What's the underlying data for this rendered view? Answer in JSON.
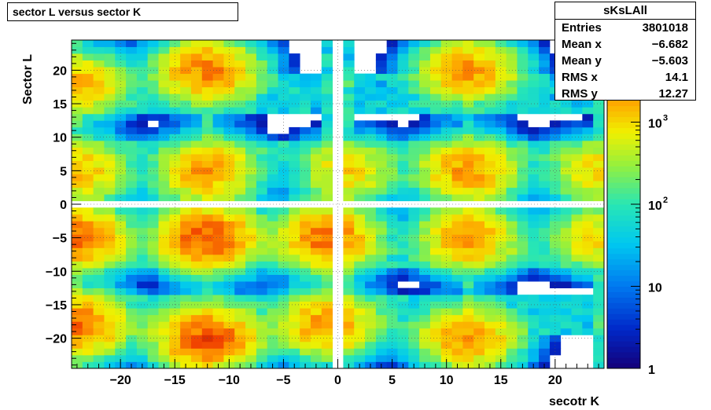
{
  "title": "sector L versus sector K",
  "stats": {
    "name": "sKsLAll",
    "rows": [
      {
        "label": "Entries",
        "value": "3801018"
      },
      {
        "label": "Mean x",
        "value": "−6.682"
      },
      {
        "label": "Mean y",
        "value": "−5.603"
      },
      {
        "label": "RMS x",
        "value": "14.1"
      },
      {
        "label": "RMS y",
        "value": "12.27"
      }
    ]
  },
  "chart_data": {
    "type": "heatmap",
    "title": "sector L versus sector K",
    "xlabel": "secotr K",
    "ylabel": "Sector L",
    "xlim": [
      -24.5,
      24.5
    ],
    "ylim": [
      -24.5,
      24.5
    ],
    "x_ticks": [
      "−20",
      "−15",
      "−10",
      "−5",
      "0",
      "5",
      "10",
      "15",
      "20"
    ],
    "y_ticks": [
      "−20",
      "−15",
      "−10",
      "−5",
      "0",
      "5",
      "10",
      "15",
      "20"
    ],
    "z_scale": "log",
    "zlim": [
      1,
      10000
    ],
    "z_ticks": [
      {
        "label": "1",
        "value": 1
      },
      {
        "label": "10",
        "value": 10
      },
      {
        "label": "10",
        "sup": "2",
        "value": 100
      },
      {
        "label": "10",
        "sup": "3",
        "value": 1000
      }
    ],
    "empty_bins": "x = 0 and y = 0 rows/columns are empty",
    "hotspots": [
      {
        "k": -12,
        "l": -5,
        "counts": 4000
      },
      {
        "k": -12,
        "l": -20,
        "counts": 4000
      },
      {
        "k": -12,
        "l": 20,
        "counts": 2500
      },
      {
        "k": -12,
        "l": 5,
        "counts": 2000
      },
      {
        "k": 12,
        "l": -5,
        "counts": 2000
      },
      {
        "k": 12,
        "l": -20,
        "counts": 2000
      },
      {
        "k": 12,
        "l": 20,
        "counts": 2000
      },
      {
        "k": 12,
        "l": 5,
        "counts": 2000
      },
      {
        "k": -24,
        "l": -5,
        "counts": 3000
      },
      {
        "k": -24,
        "l": -18,
        "counts": 3000
      },
      {
        "k": -24,
        "l": 18,
        "counts": 1500
      },
      {
        "k": -24,
        "l": 5,
        "counts": 1500
      },
      {
        "k": -1,
        "l": -5,
        "counts": 3000
      },
      {
        "k": -1,
        "l": -18,
        "counts": 2000
      },
      {
        "k": 1,
        "l": 5,
        "counts": 1000
      },
      {
        "k": 24,
        "l": -5,
        "counts": 1000
      },
      {
        "k": 24,
        "l": 5,
        "counts": 1000
      }
    ],
    "grid": true,
    "palette": "rainbow"
  }
}
